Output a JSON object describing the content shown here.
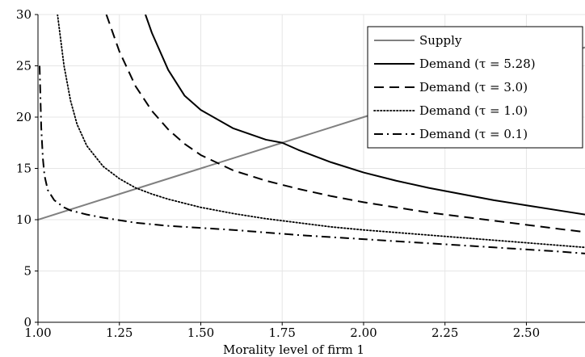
{
  "chart_data": {
    "type": "line",
    "title": "",
    "xlabel": "Morality level of firm 1",
    "ylabel": "",
    "xlim": [
      1.0,
      2.68
    ],
    "ylim": [
      0,
      30
    ],
    "xticks": [
      "1.00",
      "1.25",
      "1.50",
      "1.75",
      "2.00",
      "2.25",
      "2.50"
    ],
    "xtick_values": [
      1.0,
      1.25,
      1.5,
      1.75,
      2.0,
      2.25,
      2.5
    ],
    "yticks": [
      "0",
      "5",
      "10",
      "15",
      "20",
      "25",
      "30"
    ],
    "ytick_values": [
      0,
      5,
      10,
      15,
      20,
      25,
      30
    ],
    "grid": true,
    "legend_position": "top-right",
    "series": [
      {
        "name": "Supply",
        "color": "#808080",
        "dash": "solid",
        "x": [
          1.0,
          1.25,
          1.5,
          1.75,
          2.0,
          2.25,
          2.5,
          2.68
        ],
        "y": [
          10.0,
          12.5,
          15.0,
          17.5,
          20.0,
          22.5,
          25.0,
          26.8
        ]
      },
      {
        "name": "Demand (τ = 5.28)",
        "color": "#000000",
        "dash": "solid",
        "x": [
          1.33,
          1.35,
          1.4,
          1.45,
          1.5,
          1.6,
          1.7,
          1.75,
          1.8,
          1.9,
          2.0,
          2.1,
          2.2,
          2.3,
          2.4,
          2.5,
          2.6,
          2.68
        ],
        "y": [
          30.0,
          28.2,
          24.6,
          22.1,
          20.7,
          18.9,
          17.8,
          17.5,
          16.8,
          15.6,
          14.6,
          13.8,
          13.1,
          12.5,
          11.9,
          11.4,
          10.9,
          10.5
        ]
      },
      {
        "name": "Demand (τ = 3.0)",
        "color": "#000000",
        "dash": "dashed",
        "x": [
          1.21,
          1.25,
          1.3,
          1.35,
          1.4,
          1.45,
          1.5,
          1.6,
          1.7,
          1.8,
          1.9,
          2.0,
          2.1,
          2.2,
          2.3,
          2.4,
          2.5,
          2.6,
          2.68
        ],
        "y": [
          30.0,
          26.4,
          23.0,
          20.6,
          18.8,
          17.4,
          16.3,
          14.8,
          13.8,
          13.0,
          12.3,
          11.7,
          11.2,
          10.7,
          10.3,
          9.9,
          9.5,
          9.1,
          8.8
        ]
      },
      {
        "name": "Demand (τ = 1.0)",
        "color": "#000000",
        "dash": "dotted",
        "x": [
          1.06,
          1.08,
          1.1,
          1.12,
          1.15,
          1.2,
          1.25,
          1.3,
          1.35,
          1.4,
          1.5,
          1.6,
          1.7,
          1.8,
          1.9,
          2.0,
          2.2,
          2.4,
          2.6,
          2.68
        ],
        "y": [
          30.0,
          25.0,
          21.6,
          19.3,
          17.2,
          15.2,
          14.0,
          13.1,
          12.5,
          12.0,
          11.2,
          10.6,
          10.1,
          9.7,
          9.3,
          9.0,
          8.5,
          8.0,
          7.5,
          7.3
        ]
      },
      {
        "name": "Demand (τ = 0.1)",
        "color": "#000000",
        "dash": "dashdot",
        "x": [
          1.005,
          1.01,
          1.015,
          1.02,
          1.03,
          1.05,
          1.08,
          1.1,
          1.15,
          1.2,
          1.3,
          1.4,
          1.5,
          1.6,
          1.8,
          2.0,
          2.2,
          2.4,
          2.6,
          2.68
        ],
        "y": [
          25.0,
          19.0,
          16.0,
          14.3,
          12.9,
          11.9,
          11.2,
          10.9,
          10.5,
          10.2,
          9.7,
          9.4,
          9.2,
          9.0,
          8.5,
          8.1,
          7.7,
          7.3,
          6.9,
          6.7
        ]
      }
    ]
  }
}
